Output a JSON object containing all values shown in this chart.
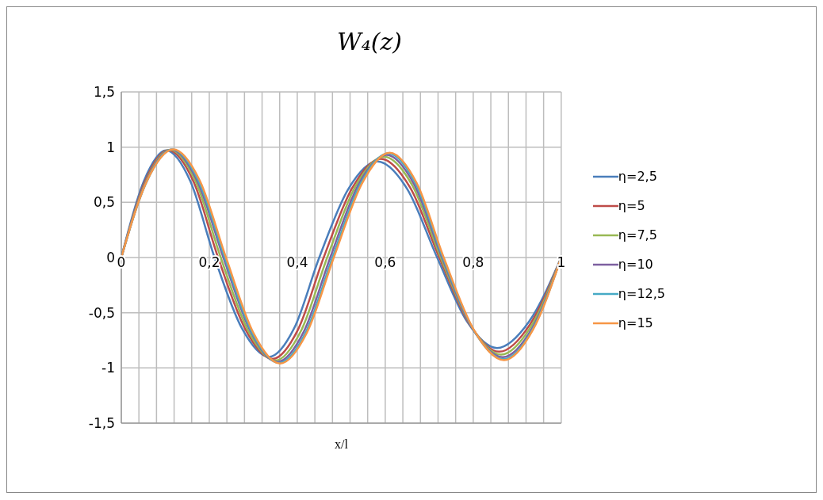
{
  "chart_data": {
    "type": "line",
    "title": "W₄(z)",
    "xlabel": "x/l",
    "xlim": [
      0,
      1
    ],
    "xticks": [
      {
        "value": 0,
        "label": "0"
      },
      {
        "value": 0.04,
        "label": null
      },
      {
        "value": 0.08,
        "label": null
      },
      {
        "value": 0.12,
        "label": null
      },
      {
        "value": 0.16,
        "label": null
      },
      {
        "value": 0.2,
        "label": "0,2"
      },
      {
        "value": 0.24,
        "label": null
      },
      {
        "value": 0.28,
        "label": null
      },
      {
        "value": 0.32,
        "label": null
      },
      {
        "value": 0.36,
        "label": null
      },
      {
        "value": 0.4,
        "label": "0,4"
      },
      {
        "value": 0.44,
        "label": null
      },
      {
        "value": 0.48,
        "label": null
      },
      {
        "value": 0.52,
        "label": null
      },
      {
        "value": 0.56,
        "label": null
      },
      {
        "value": 0.6,
        "label": "0,6"
      },
      {
        "value": 0.64,
        "label": null
      },
      {
        "value": 0.68,
        "label": null
      },
      {
        "value": 0.72,
        "label": null
      },
      {
        "value": 0.76,
        "label": null
      },
      {
        "value": 0.8,
        "label": "0,8"
      },
      {
        "value": 0.84,
        "label": null
      },
      {
        "value": 0.88,
        "label": null
      },
      {
        "value": 0.92,
        "label": null
      },
      {
        "value": 0.96,
        "label": null
      },
      {
        "value": 1,
        "label": "1"
      }
    ],
    "ylim": [
      -1.5,
      1.5
    ],
    "yticks": [
      {
        "value": -1.5,
        "label": "-1,5"
      },
      {
        "value": -1,
        "label": "-1"
      },
      {
        "value": -0.5,
        "label": "-0,5"
      },
      {
        "value": 0,
        "label": "0"
      },
      {
        "value": 0.5,
        "label": "0,5"
      },
      {
        "value": 1,
        "label": "1"
      },
      {
        "value": 1.5,
        "label": "1,5"
      }
    ],
    "grid": true,
    "legend": "right",
    "marker": "none",
    "series": [
      {
        "name": "η=2,5",
        "color": "#4a7ebb",
        "x": [
          0,
          0.051,
          0.102,
          0.157,
          0.212,
          0.274,
          0.336,
          0.393,
          0.45,
          0.516,
          0.582,
          0.65,
          0.718,
          0.786,
          0.854,
          0.927,
          1
        ],
        "values": [
          0,
          0.69,
          0.97,
          0.69,
          0,
          -0.64,
          -0.9,
          -0.64,
          0,
          0.62,
          0.87,
          0.62,
          0,
          -0.58,
          -0.82,
          -0.58,
          0
        ]
      },
      {
        "name": "η=5",
        "color": "#be4b48",
        "x": [
          0,
          0.054,
          0.107,
          0.164,
          0.22,
          0.282,
          0.344,
          0.402,
          0.46,
          0.525,
          0.59,
          0.657,
          0.723,
          0.791,
          0.859,
          0.93,
          1
        ],
        "values": [
          0,
          0.69,
          0.973,
          0.69,
          0,
          -0.65,
          -0.918,
          -0.65,
          0,
          0.63,
          0.894,
          0.63,
          0,
          -0.6,
          -0.853,
          -0.6,
          0
        ]
      },
      {
        "name": "η=7,5",
        "color": "#98b954",
        "x": [
          0,
          0.056,
          0.111,
          0.169,
          0.226,
          0.288,
          0.35,
          0.409,
          0.468,
          0.533,
          0.597,
          0.662,
          0.726,
          0.795,
          0.863,
          0.932,
          1
        ],
        "values": [
          0,
          0.69,
          0.976,
          0.69,
          0,
          -0.66,
          -0.933,
          -0.66,
          0,
          0.65,
          0.914,
          0.65,
          0,
          -0.62,
          -0.88,
          -0.62,
          0
        ]
      },
      {
        "name": "η=10",
        "color": "#7d60a0",
        "x": [
          0,
          0.057,
          0.114,
          0.173,
          0.232,
          0.294,
          0.355,
          0.415,
          0.475,
          0.539,
          0.603,
          0.666,
          0.729,
          0.798,
          0.867,
          0.934,
          1
        ],
        "values": [
          0,
          0.69,
          0.978,
          0.69,
          0,
          -0.67,
          -0.945,
          -0.67,
          0,
          0.66,
          0.93,
          0.66,
          0,
          -0.64,
          -0.903,
          -0.64,
          0
        ]
      },
      {
        "name": "η=12,5",
        "color": "#46aac5",
        "x": [
          0,
          0.058,
          0.116,
          0.176,
          0.235,
          0.297,
          0.358,
          0.419,
          0.48,
          0.544,
          0.607,
          0.669,
          0.731,
          0.8,
          0.869,
          0.935,
          1
        ],
        "values": [
          0,
          0.69,
          0.979,
          0.69,
          0,
          -0.68,
          -0.954,
          -0.68,
          0,
          0.67,
          0.944,
          0.67,
          0,
          -0.65,
          -0.92,
          -0.65,
          0
        ]
      },
      {
        "name": "η=15",
        "color": "#f79646",
        "x": [
          0,
          0.059,
          0.118,
          0.178,
          0.238,
          0.3,
          0.361,
          0.422,
          0.483,
          0.547,
          0.61,
          0.672,
          0.733,
          0.802,
          0.87,
          0.935,
          1
        ],
        "values": [
          0,
          0.7,
          0.98,
          0.7,
          0,
          -0.68,
          -0.96,
          -0.68,
          0,
          0.67,
          0.95,
          0.67,
          0,
          -0.66,
          -0.93,
          -0.66,
          0
        ]
      }
    ]
  }
}
